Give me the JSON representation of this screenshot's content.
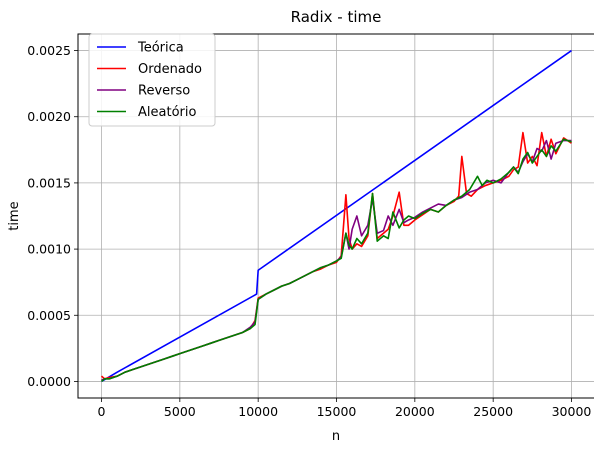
{
  "chart_data": {
    "type": "line",
    "title": "Radix - time",
    "xlabel": "n",
    "ylabel": "time",
    "xlim": [
      -1500,
      31500
    ],
    "ylim": [
      -0.000125,
      0.002625
    ],
    "xticks": [
      0,
      5000,
      10000,
      15000,
      20000,
      25000,
      30000
    ],
    "xtick_labels": [
      "0",
      "5000",
      "10000",
      "15000",
      "20000",
      "25000",
      "30000"
    ],
    "yticks": [
      0.0,
      0.0005,
      0.001,
      0.0015,
      0.002,
      0.0025
    ],
    "ytick_labels": [
      "0.0000",
      "0.0005",
      "0.0010",
      "0.0015",
      "0.0020",
      "0.0025"
    ],
    "grid": true,
    "legend_position": "top-left",
    "series": [
      {
        "name": "Teórica",
        "color": "#0000ff",
        "x": [
          0,
          1000,
          9900,
          10000,
          30000
        ],
        "y": [
          0.0,
          7e-05,
          0.00066,
          0.00084,
          0.0025
        ]
      },
      {
        "name": "Ordenado",
        "color": "#ff0000",
        "x": [
          0,
          200,
          500,
          1000,
          1500,
          2000,
          2500,
          3000,
          3500,
          4000,
          4500,
          5000,
          5500,
          6000,
          6500,
          7000,
          7500,
          8000,
          8500,
          9000,
          9500,
          9800,
          10000,
          10500,
          11000,
          11500,
          12000,
          12500,
          13000,
          13500,
          14000,
          14500,
          15000,
          15300,
          15600,
          15800,
          16000,
          16300,
          16600,
          17000,
          17300,
          17600,
          18000,
          18300,
          18600,
          19000,
          19300,
          19600,
          20000,
          20500,
          21000,
          21500,
          22000,
          22500,
          22800,
          23000,
          23300,
          23600,
          24000,
          24500,
          25000,
          25500,
          26000,
          26300,
          26600,
          26900,
          27200,
          27500,
          27800,
          28100,
          28400,
          28700,
          29000,
          29500,
          30000
        ],
        "y": [
          4e-05,
          2e-05,
          3e-05,
          4e-05,
          7e-05,
          9e-05,
          0.00011,
          0.00013,
          0.00015,
          0.00017,
          0.00019,
          0.00021,
          0.00023,
          0.00025,
          0.00027,
          0.00029,
          0.00031,
          0.00033,
          0.00035,
          0.00037,
          0.0004,
          0.00046,
          0.00063,
          0.00066,
          0.00069,
          0.00072,
          0.00074,
          0.00077,
          0.0008,
          0.00083,
          0.00085,
          0.00088,
          0.0009,
          0.00095,
          0.00141,
          0.00108,
          0.001,
          0.00104,
          0.00102,
          0.0011,
          0.00142,
          0.00108,
          0.00112,
          0.00115,
          0.00125,
          0.00143,
          0.00118,
          0.00118,
          0.00122,
          0.00126,
          0.0013,
          0.00128,
          0.00133,
          0.00136,
          0.0014,
          0.0017,
          0.00142,
          0.0014,
          0.00145,
          0.00148,
          0.0015,
          0.00152,
          0.00155,
          0.0016,
          0.00162,
          0.00188,
          0.00165,
          0.0017,
          0.00163,
          0.00188,
          0.0017,
          0.00183,
          0.00172,
          0.00184,
          0.0018
        ]
      },
      {
        "name": "Reverso",
        "color": "#800080",
        "x": [
          0,
          200,
          500,
          1000,
          1500,
          2000,
          2500,
          3000,
          3500,
          4000,
          4500,
          5000,
          5500,
          6000,
          6500,
          7000,
          7500,
          8000,
          8500,
          9000,
          9500,
          9800,
          10000,
          10500,
          11000,
          11500,
          12000,
          12500,
          13000,
          13500,
          14000,
          14500,
          15000,
          15300,
          15600,
          15800,
          16000,
          16300,
          16600,
          17000,
          17300,
          17600,
          18000,
          18300,
          18600,
          19000,
          19300,
          19600,
          20000,
          20500,
          21000,
          21500,
          22000,
          22500,
          23000,
          23500,
          24000,
          24500,
          25000,
          25500,
          26000,
          26300,
          26600,
          26900,
          27200,
          27500,
          27800,
          28100,
          28400,
          28700,
          29000,
          29500,
          30000
        ],
        "y": [
          1e-05,
          2e-05,
          2e-05,
          4e-05,
          7e-05,
          9e-05,
          0.00011,
          0.00013,
          0.00015,
          0.00017,
          0.00019,
          0.00021,
          0.00023,
          0.00025,
          0.00027,
          0.00029,
          0.00031,
          0.00033,
          0.00035,
          0.00037,
          0.00041,
          0.00045,
          0.00062,
          0.00066,
          0.00069,
          0.00072,
          0.00074,
          0.00077,
          0.0008,
          0.00083,
          0.00086,
          0.00088,
          0.00091,
          0.00094,
          0.00112,
          0.001,
          0.00115,
          0.00125,
          0.0011,
          0.00118,
          0.00138,
          0.00112,
          0.00114,
          0.00125,
          0.00118,
          0.0013,
          0.0012,
          0.00122,
          0.00124,
          0.00128,
          0.00131,
          0.00134,
          0.00133,
          0.00137,
          0.00139,
          0.00143,
          0.00145,
          0.0015,
          0.00152,
          0.0015,
          0.00158,
          0.00162,
          0.00158,
          0.00166,
          0.00172,
          0.00166,
          0.00176,
          0.00174,
          0.00182,
          0.00168,
          0.0018,
          0.00182,
          0.00182
        ]
      },
      {
        "name": "Aleatório",
        "color": "#008000",
        "x": [
          0,
          200,
          500,
          1000,
          1500,
          2000,
          2500,
          3000,
          3500,
          4000,
          4500,
          5000,
          5500,
          6000,
          6500,
          7000,
          7500,
          8000,
          8500,
          9000,
          9500,
          9800,
          10000,
          10500,
          11000,
          11500,
          12000,
          12500,
          13000,
          13500,
          14000,
          14500,
          15000,
          15300,
          15600,
          15800,
          16000,
          16300,
          16600,
          17000,
          17300,
          17600,
          18000,
          18300,
          18600,
          19000,
          19300,
          19600,
          20000,
          20500,
          21000,
          21500,
          22000,
          22500,
          23000,
          23500,
          24000,
          24300,
          24600,
          25000,
          25500,
          26000,
          26300,
          26600,
          26900,
          27200,
          27500,
          27800,
          28100,
          28400,
          28700,
          29000,
          29500,
          30000
        ],
        "y": [
          0.0,
          2e-05,
          2e-05,
          4e-05,
          7e-05,
          9e-05,
          0.00011,
          0.00013,
          0.00015,
          0.00017,
          0.00019,
          0.00021,
          0.00023,
          0.00025,
          0.00027,
          0.00029,
          0.00031,
          0.00033,
          0.00035,
          0.00037,
          0.0004,
          0.00043,
          0.00062,
          0.00066,
          0.00069,
          0.00072,
          0.00074,
          0.00077,
          0.0008,
          0.00083,
          0.00086,
          0.00088,
          0.00091,
          0.00093,
          0.00112,
          0.00103,
          0.001,
          0.00108,
          0.00104,
          0.00112,
          0.00142,
          0.00106,
          0.0011,
          0.00108,
          0.00128,
          0.00116,
          0.00122,
          0.00125,
          0.00123,
          0.00127,
          0.0013,
          0.00128,
          0.00133,
          0.00137,
          0.0014,
          0.00145,
          0.00155,
          0.00148,
          0.00152,
          0.0015,
          0.00153,
          0.00158,
          0.00162,
          0.00157,
          0.00168,
          0.00173,
          0.00165,
          0.0017,
          0.00175,
          0.0017,
          0.00178,
          0.00174,
          0.00183,
          0.00181
        ]
      }
    ]
  }
}
